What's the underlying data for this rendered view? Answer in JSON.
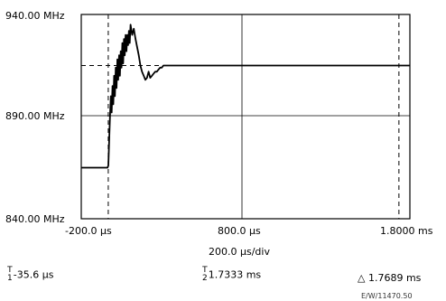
{
  "chart_data": {
    "type": "line",
    "y_top_label": "940.00 MHz",
    "y_mid_label": "890.00 MHz",
    "y_bot_label": "840.00 MHz",
    "ylim": [
      840,
      940
    ],
    "xlim": [
      -200,
      1800
    ],
    "x_tick_labels": [
      "-200.0 µs",
      "800.0 µs",
      "1.8000 ms"
    ],
    "x_div_label": "200.0 µs/div",
    "grid": "center crosshair",
    "marker_1_x": -35.6,
    "marker_2_x": 1733.3,
    "level_marker_y": 915,
    "series": [
      {
        "x": [
          -200,
          -40,
          -35,
          -30,
          -25,
          -20,
          -15,
          -10,
          -5,
          0,
          5,
          10,
          15,
          20,
          25,
          30,
          35,
          40,
          45,
          50,
          55,
          60,
          65,
          70,
          75,
          80,
          85,
          90,
          95,
          100,
          110,
          120,
          130,
          140,
          150,
          160,
          170,
          180,
          190,
          200,
          210,
          220,
          230,
          240,
          250,
          260,
          270,
          280,
          290,
          300,
          320,
          340,
          360,
          380,
          400,
          1800
        ],
        "y": [
          865,
          865,
          866,
          878,
          890,
          900,
          892,
          905,
          896,
          910,
          900,
          914,
          904,
          918,
          908,
          920,
          910,
          922,
          914,
          926,
          916,
          928,
          920,
          930,
          922,
          930,
          925,
          932,
          926,
          935,
          930,
          933,
          928,
          924,
          920,
          915,
          912,
          910,
          908,
          909,
          912,
          909,
          910,
          911,
          912,
          912,
          913,
          914,
          914,
          915,
          915,
          915,
          915,
          915,
          915,
          915
        ]
      }
    ]
  },
  "markers": {
    "m1_sub": "1",
    "m1_value": "-35.6 µs",
    "m2_sub": "2",
    "m2_value": "1.7333 ms",
    "delta_symbol": "△",
    "delta_value": "1.7689 ms"
  },
  "figure_ref": "E/W/11470.50"
}
